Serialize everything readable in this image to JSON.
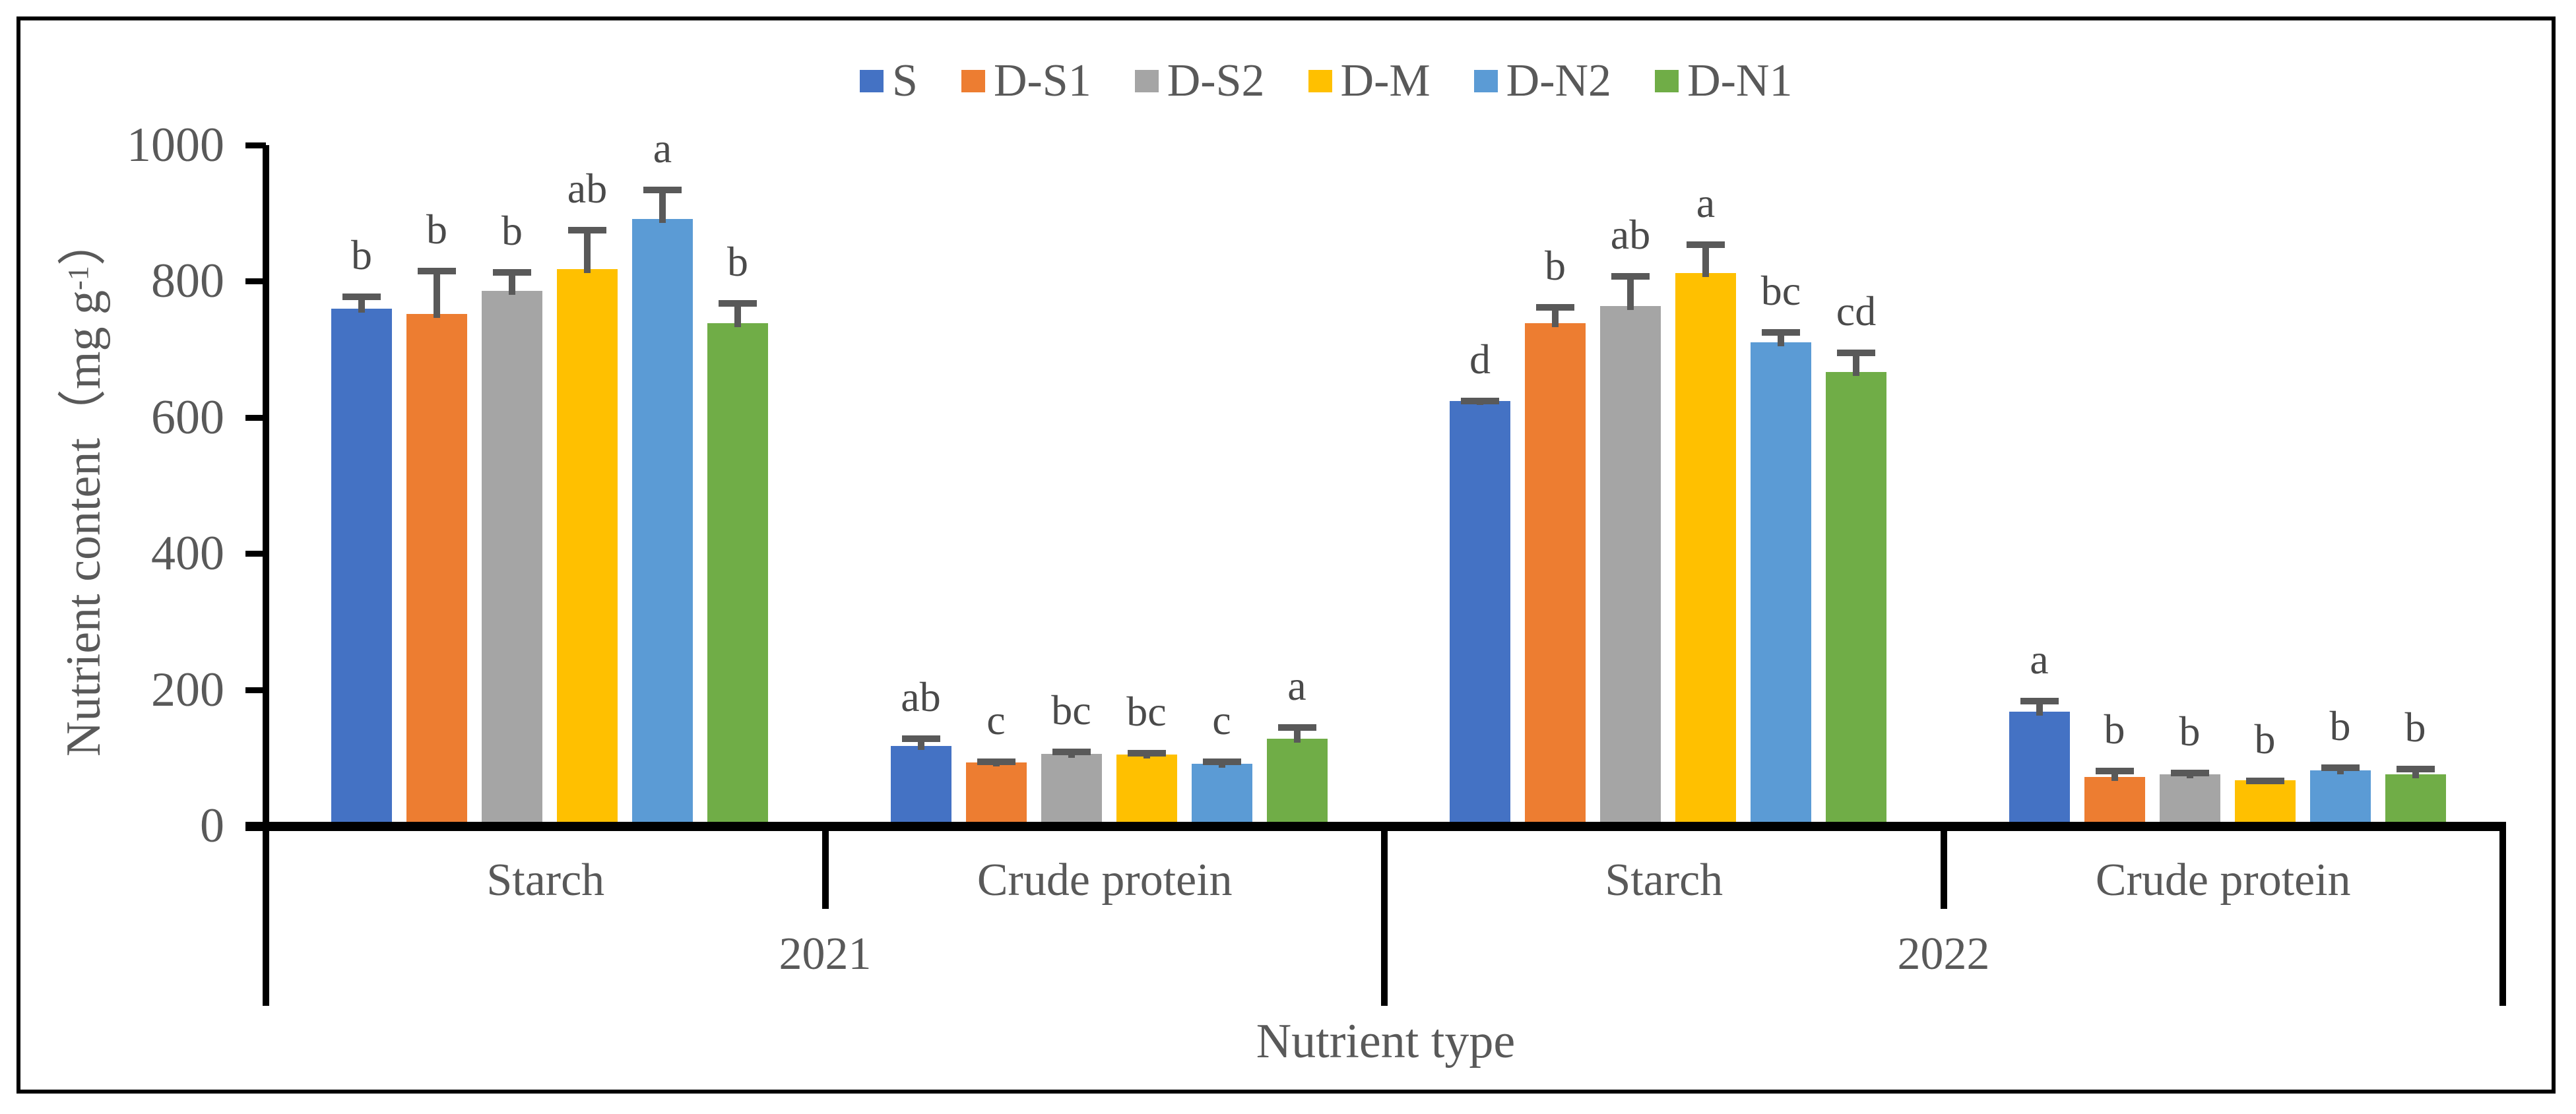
{
  "legend": {
    "items": [
      {
        "label": "S",
        "color": "#4472C4"
      },
      {
        "label": "D-S1",
        "color": "#ED7D31"
      },
      {
        "label": "D-S2",
        "color": "#A5A5A5"
      },
      {
        "label": "D-M",
        "color": "#FFC000"
      },
      {
        "label": "D-N2",
        "color": "#5B9BD5"
      },
      {
        "label": "D-N1",
        "color": "#70AD47"
      }
    ]
  },
  "y_axis": {
    "title_pre": "Nutrient content（mg g",
    "title_sup": "-1",
    "title_post": "）",
    "ticks": [
      1000,
      800,
      600,
      400,
      200,
      0
    ]
  },
  "x_axis": {
    "title": "Nutrient type",
    "tier1_labels": [
      "Starch",
      "Crude protein",
      "Starch",
      "Crude protein"
    ],
    "tier2_labels": [
      "2021",
      "2022"
    ]
  },
  "chart_data": {
    "type": "bar",
    "title": "",
    "ylabel": "Nutrient content (mg g-1)",
    "xlabel": "Nutrient type",
    "ylim": [
      0,
      1000
    ],
    "yticks": [
      0,
      200,
      400,
      600,
      800,
      1000
    ],
    "grid": false,
    "legend_position": "top-center",
    "error_bar_color": "#595959",
    "categories": [
      "Starch (2021)",
      "Crude protein (2021)",
      "Starch (2022)",
      "Crude protein (2022)"
    ],
    "series": [
      {
        "name": "S",
        "color": "#4472C4",
        "values": [
          760,
          117,
          624,
          168
        ],
        "errors": [
          22,
          16,
          5,
          20
        ],
        "letters": [
          "b",
          "ab",
          "d",
          "a"
        ]
      },
      {
        "name": "D-S1",
        "color": "#ED7D31",
        "values": [
          752,
          93,
          738,
          72
        ],
        "errors": [
          68,
          6,
          28,
          13
        ],
        "letters": [
          "b",
          "c",
          "b",
          "b"
        ]
      },
      {
        "name": "D-S2",
        "color": "#A5A5A5",
        "values": [
          786,
          106,
          764,
          76
        ],
        "errors": [
          32,
          7,
          48,
          6
        ],
        "letters": [
          "b",
          "bc",
          "ab",
          "b"
        ]
      },
      {
        "name": "D-M",
        "color": "#FFC000",
        "values": [
          818,
          105,
          812,
          67
        ],
        "errors": [
          62,
          6,
          47,
          4
        ],
        "letters": [
          "ab",
          "bc",
          "a",
          "b"
        ]
      },
      {
        "name": "D-N2",
        "color": "#5B9BD5",
        "values": [
          891,
          91,
          710,
          81
        ],
        "errors": [
          48,
          8,
          20,
          9
        ],
        "letters": [
          "a",
          "c",
          "bc",
          "b"
        ]
      },
      {
        "name": "D-N1",
        "color": "#70AD47",
        "values": [
          738,
          128,
          667,
          76
        ],
        "errors": [
          34,
          21,
          33,
          12
        ],
        "letters": [
          "b",
          "a",
          "cd",
          "b"
        ]
      }
    ]
  }
}
